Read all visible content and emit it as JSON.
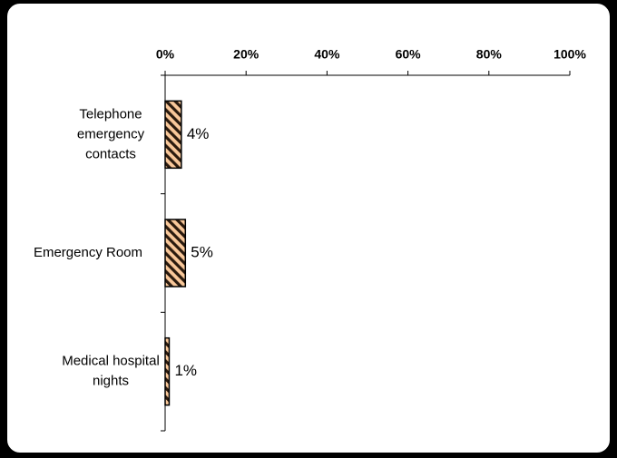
{
  "chart_data": {
    "type": "bar",
    "orientation": "horizontal",
    "title": "",
    "xlabel": "",
    "ylabel": "",
    "xlim": [
      0,
      100
    ],
    "x_ticks": [
      "0%",
      "20%",
      "40%",
      "60%",
      "80%",
      "100%"
    ],
    "x_tick_values": [
      0,
      20,
      40,
      60,
      80,
      100
    ],
    "x_axis_position": "top",
    "categories": [
      [
        "Telephone",
        "emergency",
        "contacts"
      ],
      [
        "Emergency Room"
      ],
      [
        "Medical hospital",
        "nights"
      ]
    ],
    "values": [
      4,
      5,
      1
    ],
    "value_labels": [
      "4%",
      "5%",
      "1%"
    ],
    "grid": false,
    "legend": "none",
    "bar_fill": "hatched",
    "colors": {
      "bar_light": "#f9c89a",
      "bar_dark": "#2a1a0e",
      "bar_border": "#000000",
      "frame": "#000000"
    }
  }
}
